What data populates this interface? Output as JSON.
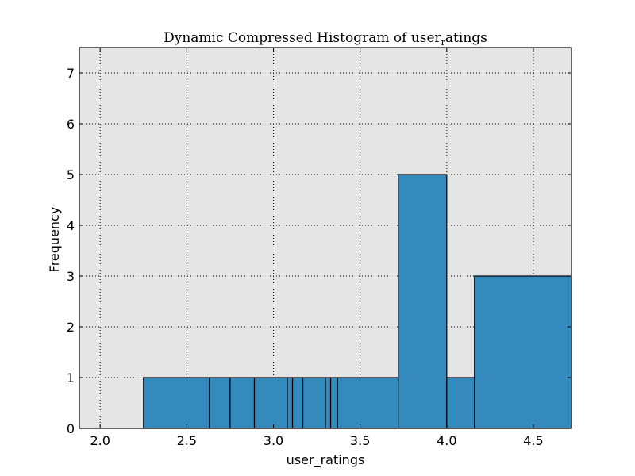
{
  "chart_data": {
    "type": "bar",
    "title": {
      "main": "Dynamic Compressed Histogram of user",
      "subscript": "r",
      "tail": "atings"
    },
    "xlabel": "user_ratings",
    "ylabel": "Frequency",
    "xlim": [
      1.88,
      4.72
    ],
    "ylim": [
      0,
      7.5
    ],
    "x_ticks": [
      2.0,
      2.5,
      3.0,
      3.5,
      4.0,
      4.5
    ],
    "x_tick_labels": [
      "2.0",
      "2.5",
      "3.0",
      "3.5",
      "4.0",
      "4.5"
    ],
    "y_ticks": [
      0,
      1,
      2,
      3,
      4,
      5,
      6,
      7
    ],
    "y_tick_labels": [
      "0",
      "1",
      "2",
      "3",
      "4",
      "5",
      "6",
      "7"
    ],
    "grid": true,
    "bins": [
      {
        "x0": 2.25,
        "x1": 2.63,
        "count": 1
      },
      {
        "x0": 2.63,
        "x1": 2.75,
        "count": 1
      },
      {
        "x0": 2.75,
        "x1": 2.89,
        "count": 1
      },
      {
        "x0": 2.89,
        "x1": 3.08,
        "count": 1
      },
      {
        "x0": 3.08,
        "x1": 3.11,
        "count": 1
      },
      {
        "x0": 3.11,
        "x1": 3.17,
        "count": 1
      },
      {
        "x0": 3.17,
        "x1": 3.3,
        "count": 1
      },
      {
        "x0": 3.3,
        "x1": 3.33,
        "count": 1
      },
      {
        "x0": 3.33,
        "x1": 3.37,
        "count": 1
      },
      {
        "x0": 3.37,
        "x1": 3.72,
        "count": 1
      },
      {
        "x0": 3.72,
        "x1": 4.0,
        "count": 5
      },
      {
        "x0": 4.0,
        "x1": 4.16,
        "count": 1
      },
      {
        "x0": 4.16,
        "x1": 4.72,
        "count": 3
      }
    ],
    "colors": {
      "bar_fill": "#348abd",
      "bar_edge": "#000000",
      "plot_background": "#e5e5e5",
      "grid": "#000000"
    }
  }
}
